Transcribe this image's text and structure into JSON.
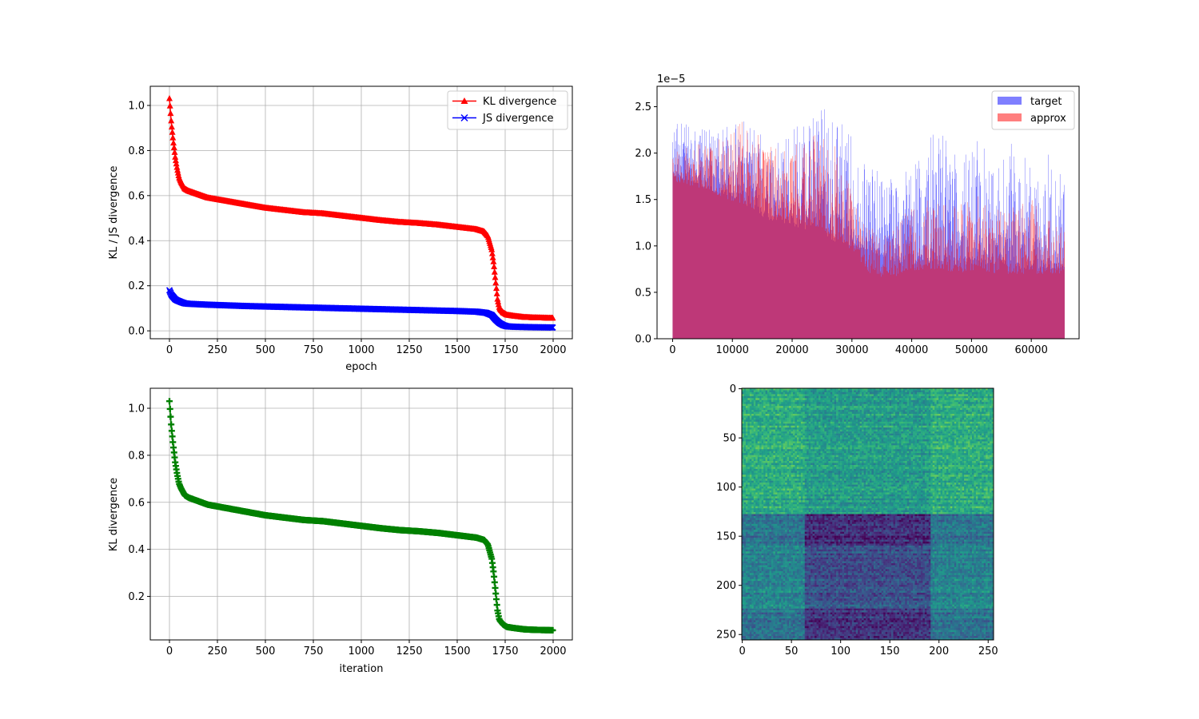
{
  "chart_data": [
    {
      "type": "line",
      "xlabel": "epoch",
      "ylabel": "KL / JS divergence",
      "xlim": [
        -100,
        2100
      ],
      "ylim": [
        -0.035,
        1.085
      ],
      "xticks": [
        "0",
        "250",
        "500",
        "750",
        "1000",
        "1250",
        "1500",
        "1750",
        "2000"
      ],
      "yticks": [
        "0.0",
        "0.2",
        "0.4",
        "0.6",
        "0.8",
        "1.0"
      ],
      "grid": true,
      "legend_position": "top-right",
      "series": [
        {
          "name": "KL divergence",
          "color": "#ff0000",
          "marker": "triangle-up",
          "x": [
            0,
            10,
            20,
            30,
            40,
            50,
            60,
            80,
            100,
            150,
            200,
            300,
            400,
            500,
            600,
            700,
            800,
            900,
            1000,
            1100,
            1200,
            1300,
            1400,
            1500,
            1550,
            1600,
            1640,
            1660,
            1680,
            1690,
            1700,
            1710,
            1720,
            1740,
            1760,
            1800,
            1850,
            1900,
            1950,
            2000
          ],
          "y": [
            1.03,
            0.92,
            0.84,
            0.77,
            0.72,
            0.68,
            0.66,
            0.63,
            0.62,
            0.605,
            0.59,
            0.575,
            0.56,
            0.545,
            0.535,
            0.525,
            0.52,
            0.51,
            0.5,
            0.49,
            0.482,
            0.477,
            0.47,
            0.46,
            0.455,
            0.45,
            0.44,
            0.42,
            0.36,
            0.3,
            0.22,
            0.14,
            0.1,
            0.08,
            0.07,
            0.065,
            0.06,
            0.058,
            0.057,
            0.056
          ]
        },
        {
          "name": "JS divergence",
          "color": "#0000ff",
          "marker": "x",
          "x": [
            0,
            10,
            20,
            30,
            40,
            60,
            80,
            100,
            150,
            200,
            300,
            400,
            500,
            600,
            800,
            1000,
            1200,
            1400,
            1500,
            1600,
            1650,
            1680,
            1700,
            1720,
            1740,
            1760,
            1800,
            1900,
            2000
          ],
          "y": [
            0.18,
            0.16,
            0.15,
            0.14,
            0.135,
            0.128,
            0.122,
            0.12,
            0.118,
            0.116,
            0.113,
            0.11,
            0.108,
            0.106,
            0.102,
            0.098,
            0.094,
            0.09,
            0.088,
            0.085,
            0.08,
            0.07,
            0.05,
            0.035,
            0.025,
            0.02,
            0.018,
            0.016,
            0.015
          ]
        }
      ]
    },
    {
      "type": "bar",
      "offset_text": "1e−5",
      "xlim": [
        -2600,
        68000
      ],
      "ylim": [
        0,
        2.72
      ],
      "xticks": [
        "0",
        "10000",
        "20000",
        "30000",
        "40000",
        "50000",
        "60000"
      ],
      "yticks": [
        "0.0",
        "0.5",
        "1.0",
        "1.5",
        "2.0",
        "2.5"
      ],
      "legend_position": "top-right",
      "x_range": [
        0,
        65536
      ],
      "series": [
        {
          "name": "target",
          "color": "#0000ff",
          "alpha": 0.5,
          "envelope_x": [
            0,
            3000,
            6000,
            9000,
            12000,
            15000,
            18000,
            21000,
            24000,
            27000,
            30000,
            33000,
            36000,
            39000,
            42000,
            45000,
            48000,
            51000,
            54000,
            57000,
            60000,
            63000,
            65536
          ],
          "envelope_max": [
            2.35,
            2.3,
            2.25,
            2.3,
            2.35,
            2.2,
            2.1,
            2.35,
            2.55,
            2.4,
            2.2,
            1.85,
            1.8,
            1.85,
            2.1,
            2.3,
            1.9,
            2.3,
            1.85,
            2.2,
            1.85,
            2.0,
            1.8
          ],
          "envelope_min": [
            1.75,
            1.7,
            1.6,
            1.55,
            1.45,
            1.3,
            1.25,
            1.2,
            1.15,
            1.05,
            1.0,
            0.95,
            0.85,
            0.8,
            0.8,
            0.8,
            0.8,
            0.8,
            0.8,
            0.75,
            0.75,
            0.75,
            0.75
          ]
        },
        {
          "name": "approx",
          "color": "#ff0000",
          "alpha": 0.5,
          "envelope_x": [
            0,
            3000,
            6000,
            9000,
            12000,
            15000,
            18000,
            21000,
            24000,
            27000,
            30000,
            33000,
            36000,
            39000,
            42000,
            45000,
            48000,
            51000,
            54000,
            57000,
            60000,
            63000,
            65536
          ],
          "envelope_max": [
            2.0,
            2.1,
            2.1,
            2.2,
            2.4,
            2.15,
            2.05,
            2.1,
            2.3,
            2.1,
            1.6,
            1.2,
            1.1,
            1.4,
            1.5,
            1.5,
            1.45,
            1.55,
            1.4,
            1.45,
            1.5,
            1.3,
            1.25
          ],
          "envelope_min": [
            1.7,
            1.65,
            1.6,
            1.5,
            1.45,
            1.35,
            1.3,
            1.25,
            1.2,
            1.1,
            0.95,
            0.7,
            0.65,
            0.7,
            0.75,
            0.75,
            0.7,
            0.75,
            0.7,
            0.7,
            0.7,
            0.7,
            0.7
          ]
        }
      ]
    },
    {
      "type": "line",
      "xlabel": "iteration",
      "ylabel": "KL divergence",
      "xlim": [
        -100,
        2100
      ],
      "ylim": [
        0.015,
        1.085
      ],
      "xticks": [
        "0",
        "250",
        "500",
        "750",
        "1000",
        "1250",
        "1500",
        "1750",
        "2000"
      ],
      "yticks": [
        "0.2",
        "0.4",
        "0.6",
        "0.8",
        "1.0"
      ],
      "grid": true,
      "series": [
        {
          "color": "#008000",
          "marker": "plus",
          "x": [
            0,
            10,
            20,
            30,
            40,
            50,
            60,
            80,
            100,
            150,
            200,
            300,
            400,
            500,
            600,
            700,
            800,
            900,
            1000,
            1100,
            1200,
            1300,
            1400,
            1500,
            1550,
            1600,
            1640,
            1660,
            1680,
            1690,
            1700,
            1710,
            1720,
            1740,
            1760,
            1800,
            1850,
            1900,
            1950,
            2000
          ],
          "y": [
            1.03,
            0.92,
            0.84,
            0.77,
            0.72,
            0.68,
            0.66,
            0.63,
            0.62,
            0.605,
            0.59,
            0.575,
            0.56,
            0.545,
            0.535,
            0.525,
            0.52,
            0.51,
            0.5,
            0.49,
            0.482,
            0.477,
            0.47,
            0.46,
            0.455,
            0.45,
            0.44,
            0.42,
            0.36,
            0.3,
            0.22,
            0.14,
            0.1,
            0.08,
            0.07,
            0.065,
            0.06,
            0.058,
            0.057,
            0.056
          ]
        }
      ]
    },
    {
      "type": "heatmap",
      "colormap": "viridis",
      "size": [
        256,
        256
      ],
      "xticks": [
        "0",
        "50",
        "100",
        "150",
        "200",
        "250"
      ],
      "yticks": [
        "0",
        "50",
        "100",
        "150",
        "200",
        "250"
      ],
      "xtick_values": [
        0,
        50,
        100,
        150,
        200,
        250
      ],
      "ytick_values": [
        0,
        50,
        100,
        150,
        200,
        250
      ],
      "col_bands": [
        [
          0,
          64
        ],
        [
          64,
          192
        ],
        [
          192,
          256
        ]
      ],
      "row_bands": [
        [
          0,
          128
        ],
        [
          128,
          160
        ],
        [
          160,
          224
        ],
        [
          224,
          256
        ]
      ],
      "block_levels": [
        [
          0.62,
          0.55,
          0.62
        ],
        [
          0.38,
          0.12,
          0.38
        ],
        [
          0.46,
          0.25,
          0.46
        ],
        [
          0.38,
          0.15,
          0.38
        ]
      ]
    }
  ]
}
